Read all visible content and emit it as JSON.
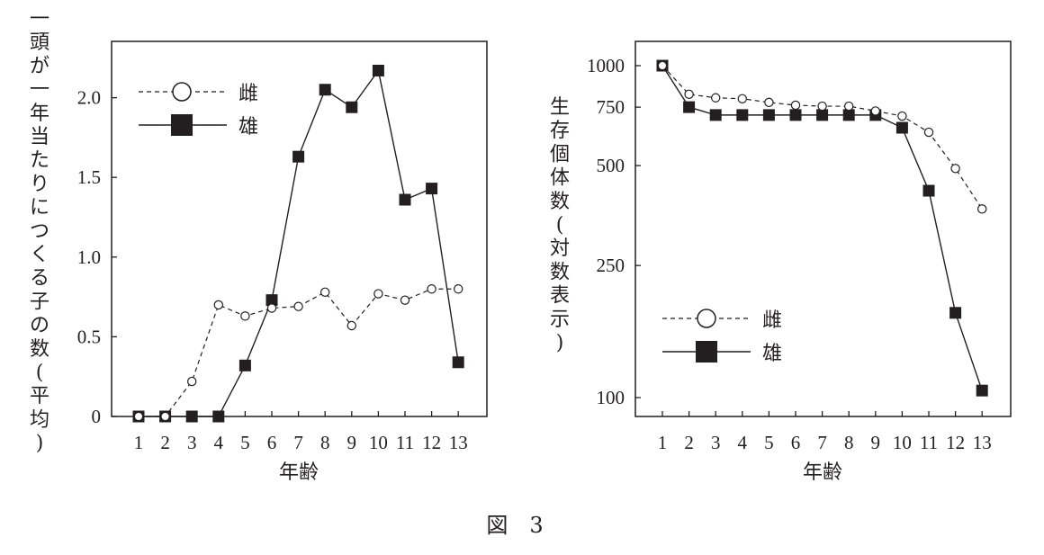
{
  "figure_caption": "図　3",
  "chart_data": [
    {
      "type": "line",
      "ylabel": "一頭が一年当たりにつくる子の数(平均)",
      "xlabel": "年齢",
      "x": [
        1,
        2,
        3,
        4,
        5,
        6,
        7,
        8,
        9,
        10,
        11,
        12,
        13
      ],
      "ylim": [
        0,
        2.4
      ],
      "yticks": [
        0,
        0.5,
        1.0,
        1.5,
        2.0
      ],
      "ytick_labels": [
        "0",
        "0.5",
        "1.0",
        "1.5",
        "2.0"
      ],
      "legend_position": "top-left",
      "series": [
        {
          "name": "雌",
          "marker": "open-circle",
          "line": "dashed",
          "values": [
            0,
            0,
            0.22,
            0.7,
            0.63,
            0.68,
            0.69,
            0.78,
            0.57,
            0.77,
            0.73,
            0.8,
            0.8
          ]
        },
        {
          "name": "雄",
          "marker": "filled-square",
          "line": "solid",
          "values": [
            0,
            0,
            0,
            0,
            0.32,
            0.73,
            1.63,
            2.05,
            1.94,
            2.17,
            1.36,
            1.43,
            0.34
          ]
        }
      ]
    },
    {
      "type": "line",
      "ylabel": "生存個体数(対数表示)",
      "xlabel": "年齢",
      "x": [
        1,
        2,
        3,
        4,
        5,
        6,
        7,
        8,
        9,
        10,
        11,
        12,
        13
      ],
      "yscale": "log",
      "ylim": [
        90,
        1150
      ],
      "yticks": [
        100,
        250,
        500,
        750,
        1000
      ],
      "ytick_labels": [
        "100",
        "250",
        "500",
        "750",
        "1000"
      ],
      "legend_position": "bottom-left",
      "series": [
        {
          "name": "雌",
          "marker": "open-circle",
          "line": "dashed",
          "values": [
            1000,
            820,
            800,
            795,
            775,
            760,
            755,
            755,
            730,
            705,
            630,
            490,
            370
          ]
        },
        {
          "name": "雄",
          "marker": "filled-square",
          "line": "solid",
          "values": [
            1000,
            750,
            710,
            710,
            710,
            710,
            710,
            710,
            710,
            650,
            420,
            180,
            105
          ]
        }
      ]
    }
  ]
}
